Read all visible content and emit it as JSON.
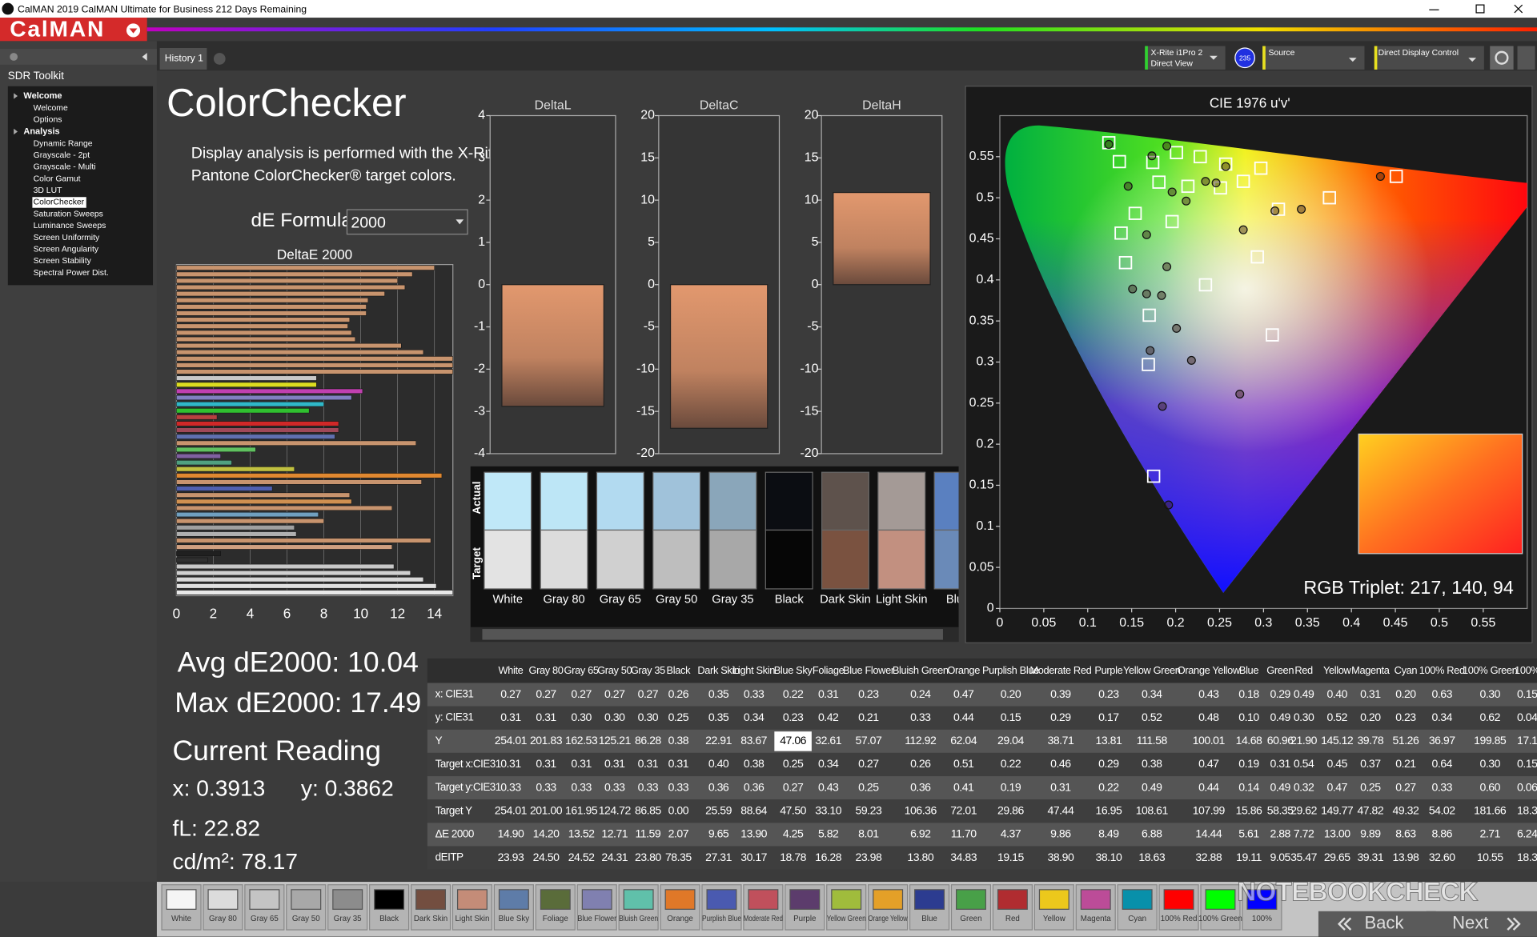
{
  "window": {
    "title": "CalMAN 2019 CalMAN Ultimate for Business 212 Days Remaining"
  },
  "app": {
    "logo": "CalMAN",
    "tab": "History 1",
    "sidebar_title": "SDR Toolkit",
    "tree": [
      {
        "label": "Welcome",
        "items": [
          "Welcome",
          "Options"
        ]
      },
      {
        "label": "Analysis",
        "items": [
          "Dynamic Range",
          "Grayscale - 2pt",
          "Grayscale - Multi",
          "Color Gamut",
          "3D LUT",
          "ColorChecker",
          "Saturation Sweeps",
          "Luminance Sweeps",
          "Screen Uniformity",
          "Screen Angularity",
          "Screen Stability",
          "Spectral Power Dist."
        ],
        "selected_index": 5
      }
    ]
  },
  "toolbar": {
    "meter": [
      "X-Rite i1Pro 2",
      "Direct View"
    ],
    "meter_badge": "235",
    "source": "Source",
    "display": "Direct Display Control"
  },
  "page": {
    "title": "ColorChecker",
    "description": [
      "Display analysis is performed with the X-Rite/",
      "Pantone ColorChecker® target colors."
    ],
    "formula_label": "dE Formula:",
    "formula": "2000"
  },
  "deltae_chart": {
    "title": "DeltaE 2000",
    "xlim": [
      0,
      15
    ],
    "xticks": [
      0,
      2,
      4,
      6,
      8,
      10,
      12,
      14
    ],
    "values": [
      14.0,
      12.8,
      12.0,
      12.4,
      11.3,
      10.4,
      10.3,
      10.3,
      9.4,
      9.3,
      9.5,
      9.7,
      12.2,
      13.4,
      15,
      15,
      15,
      7.6,
      7.6,
      10.1,
      9.5,
      8.0,
      7.2,
      2.2,
      8.8,
      8.8,
      8.6,
      13.0,
      4.3,
      2.4,
      3.0,
      6.4,
      14.4,
      13.3,
      5.2,
      9.4,
      9.5,
      11.7,
      7.7,
      8.0,
      6.4,
      6.5,
      13.8,
      11.7,
      2.4,
      1.7,
      11.8,
      12.7,
      13.4,
      14.1,
      15
    ],
    "colors": [
      "#c8946e",
      "#c8946e",
      "#c8946e",
      "#c8946e",
      "#c8946e",
      "#c8946e",
      "#c8946e",
      "#c8946e",
      "#c8946e",
      "#c8946e",
      "#c8946e",
      "#c8946e",
      "#c8946e",
      "#c8946e",
      "#c8946e",
      "#c8946e",
      "#c8946e",
      "#c8c8c8",
      "#dcdc20",
      "#c040b0",
      "#8080c0",
      "#30b8c8",
      "#30c030",
      "#b84040",
      "#d02828",
      "#a04858",
      "#6070b0",
      "#c8946e",
      "#60c060",
      "#8060a0",
      "#50a080",
      "#c0c040",
      "#e08830",
      "#c8946e",
      "#5060b0",
      "#c8946e",
      "#d09050",
      "#c8946e",
      "#70a0c0",
      "#c8946e",
      "#a0a0a0",
      "#b0b0b0",
      "#c8946e",
      "#d0a080",
      "#202020",
      "#303030",
      "#c8c8c8",
      "#d0d0d0",
      "#d8d8d8",
      "#e0e0e0",
      "#e8e8e8"
    ]
  },
  "delta_charts": [
    {
      "title": "DeltaL",
      "ylim": [
        -4,
        4
      ],
      "yticks": [
        4,
        3,
        2,
        1,
        0,
        -1,
        -2,
        -3,
        -4
      ],
      "value": -2.88
    },
    {
      "title": "DeltaC",
      "ylim": [
        -20,
        20
      ],
      "yticks": [
        20,
        15,
        10,
        5,
        0,
        -5,
        -10,
        -15,
        -20
      ],
      "value": -17.0
    },
    {
      "title": "DeltaH",
      "ylim": [
        -20,
        20
      ],
      "yticks": [
        20,
        15,
        10,
        5,
        0,
        -5,
        -10,
        -15,
        -20
      ],
      "value": 10.9
    }
  ],
  "swatches": {
    "actual_label": "Actual",
    "target_label": "Target",
    "items": [
      {
        "name": "White",
        "actual": "#c0e8f8",
        "target": "#e3e3e3"
      },
      {
        "name": "Gray 80",
        "actual": "#bde6f6",
        "target": "#dcdcdc"
      },
      {
        "name": "Gray 65",
        "actual": "#b2daf0",
        "target": "#d0d0d0"
      },
      {
        "name": "Gray 50",
        "actual": "#a0c2da",
        "target": "#bebebe"
      },
      {
        "name": "Gray 35",
        "actual": "#8aa6ba",
        "target": "#a8a8a8"
      },
      {
        "name": "Black",
        "actual": "#0b0d12",
        "target": "#060606"
      },
      {
        "name": "Dark Skin",
        "actual": "#5e524c",
        "target": "#7a5240"
      },
      {
        "name": "Light Skin",
        "actual": "#a49a96",
        "target": "#c29080"
      },
      {
        "name": "Blue",
        "actual": "#5a80c0",
        "target": "#6a8ab8"
      }
    ]
  },
  "cie": {
    "title": "CIE 1976 u'v'",
    "xlim": [
      0,
      0.6
    ],
    "ylim": [
      0,
      0.6
    ],
    "xticks": [
      0,
      0.05,
      0.1,
      0.15,
      0.2,
      0.25,
      0.3,
      0.35,
      0.4,
      0.45,
      0.5,
      0.55
    ],
    "yticks": [
      0,
      0.05,
      0.1,
      0.15,
      0.2,
      0.25,
      0.3,
      0.35,
      0.4,
      0.45,
      0.5,
      0.55
    ],
    "measured": {
      "u": [
        0.124,
        0.173,
        0.19,
        0.146,
        0.196,
        0.212,
        0.234,
        0.257,
        0.313,
        0.343,
        0.433,
        0.167,
        0.19,
        0.151,
        0.167,
        0.184,
        0.201,
        0.171,
        0.218,
        0.185,
        0.192,
        0.277,
        0.273,
        0.246
      ],
      "v": [
        0.565,
        0.551,
        0.563,
        0.514,
        0.507,
        0.496,
        0.52,
        0.538,
        0.484,
        0.486,
        0.526,
        0.455,
        0.416,
        0.389,
        0.383,
        0.381,
        0.341,
        0.314,
        0.302,
        0.246,
        0.126,
        0.461,
        0.261,
        0.518
      ]
    },
    "targets": {
      "u": [
        0.124,
        0.136,
        0.174,
        0.201,
        0.228,
        0.257,
        0.297,
        0.181,
        0.214,
        0.251,
        0.277,
        0.375,
        0.451,
        0.317,
        0.154,
        0.138,
        0.196,
        0.143,
        0.293,
        0.234,
        0.17,
        0.31,
        0.169,
        0.175
      ],
      "v": [
        0.567,
        0.544,
        0.543,
        0.555,
        0.55,
        0.541,
        0.536,
        0.519,
        0.514,
        0.512,
        0.52,
        0.5,
        0.526,
        0.486,
        0.481,
        0.457,
        0.471,
        0.421,
        0.428,
        0.394,
        0.357,
        0.333,
        0.297,
        0.161
      ]
    },
    "rgb_triplet": "RGB Triplet: 217, 140, 94"
  },
  "summary": {
    "avg": "Avg dE2000: 10.04",
    "max": "Max dE2000: 17.49",
    "current_reading": "Current Reading",
    "x": "x: 0.3913",
    "y": "y: 0.3862",
    "fl": "fL: 22.82",
    "cdm2": "cd/m²: 78.17"
  },
  "table": {
    "columns": [
      "White",
      "Gray 80",
      "Gray 65",
      "Gray 50",
      "Gray 35",
      "Black",
      "Dark Skin",
      "Light Skin",
      "Blue Sky",
      "Foliage",
      "Blue Flower",
      "Bluish Green",
      "Orange",
      "Purplish Blue",
      "Moderate Red",
      "Purple",
      "Yellow Green",
      "Orange Yellow",
      "Blue",
      "Green",
      "Red",
      "Yellow",
      "Magenta",
      "Cyan",
      "100% Red",
      "100% Green",
      "100%"
    ],
    "rows": [
      {
        "label": "x: CIE31",
        "cells": [
          "0.27",
          "0.27",
          "0.27",
          "0.27",
          "0.27",
          "0.26",
          "0.35",
          "0.33",
          "0.22",
          "0.31",
          "0.23",
          "0.24",
          "0.47",
          "0.20",
          "0.39",
          "0.23",
          "0.34",
          "0.43",
          "0.18",
          "0.29",
          "0.49",
          "0.40",
          "0.31",
          "0.20",
          "0.63",
          "0.30",
          "0.15"
        ]
      },
      {
        "label": "y: CIE31",
        "cells": [
          "0.31",
          "0.31",
          "0.30",
          "0.30",
          "0.30",
          "0.25",
          "0.35",
          "0.34",
          "0.23",
          "0.42",
          "0.21",
          "0.33",
          "0.44",
          "0.15",
          "0.29",
          "0.17",
          "0.52",
          "0.48",
          "0.10",
          "0.49",
          "0.30",
          "0.52",
          "0.20",
          "0.23",
          "0.34",
          "0.62",
          "0.04"
        ]
      },
      {
        "label": "Y",
        "cells": [
          "254.01",
          "201.83",
          "162.53",
          "125.21",
          "86.28",
          "0.38",
          "22.91",
          "83.67",
          "47.06",
          "32.61",
          "57.07",
          "112.92",
          "62.04",
          "29.04",
          "38.71",
          "13.81",
          "111.58",
          "100.01",
          "14.68",
          "60.96",
          "21.90",
          "145.12",
          "39.78",
          "51.26",
          "36.97",
          "199.85",
          "17.1"
        ]
      },
      {
        "label": "Target x:CIE31",
        "cells": [
          "0.31",
          "0.31",
          "0.31",
          "0.31",
          "0.31",
          "0.31",
          "0.40",
          "0.38",
          "0.25",
          "0.34",
          "0.27",
          "0.26",
          "0.51",
          "0.22",
          "0.46",
          "0.29",
          "0.38",
          "0.47",
          "0.19",
          "0.31",
          "0.54",
          "0.45",
          "0.37",
          "0.21",
          "0.64",
          "0.30",
          "0.15"
        ]
      },
      {
        "label": "Target y:CIE31",
        "cells": [
          "0.33",
          "0.33",
          "0.33",
          "0.33",
          "0.33",
          "0.33",
          "0.36",
          "0.36",
          "0.27",
          "0.43",
          "0.25",
          "0.36",
          "0.41",
          "0.19",
          "0.31",
          "0.22",
          "0.49",
          "0.44",
          "0.14",
          "0.49",
          "0.32",
          "0.47",
          "0.25",
          "0.27",
          "0.33",
          "0.60",
          "0.06"
        ]
      },
      {
        "label": "Target Y",
        "cells": [
          "254.01",
          "201.00",
          "161.95",
          "124.72",
          "86.85",
          "0.00",
          "25.59",
          "88.64",
          "47.50",
          "33.10",
          "59.23",
          "106.36",
          "72.01",
          "29.86",
          "47.44",
          "16.95",
          "108.61",
          "107.99",
          "15.86",
          "58.35",
          "29.62",
          "149.77",
          "47.82",
          "49.32",
          "54.02",
          "181.66",
          "18.3"
        ]
      },
      {
        "label": "ΔE 2000",
        "cells": [
          "14.90",
          "14.20",
          "13.52",
          "12.71",
          "11.59",
          "2.07",
          "9.65",
          "13.90",
          "4.25",
          "5.82",
          "8.01",
          "6.92",
          "11.70",
          "4.37",
          "9.86",
          "8.49",
          "6.88",
          "14.44",
          "5.61",
          "2.88",
          "7.72",
          "13.00",
          "9.89",
          "8.63",
          "8.86",
          "2.71",
          "6.24"
        ]
      },
      {
        "label": "dEITP",
        "cells": [
          "23.93",
          "24.50",
          "24.52",
          "24.31",
          "23.80",
          "78.35",
          "27.31",
          "30.17",
          "18.78",
          "16.28",
          "23.98",
          "13.80",
          "34.83",
          "19.15",
          "38.90",
          "38.10",
          "18.63",
          "32.88",
          "19.11",
          "9.05",
          "35.47",
          "29.65",
          "39.31",
          "13.98",
          "32.60",
          "10.55",
          "18.3"
        ]
      }
    ],
    "selected_cell": [
      2,
      8
    ]
  },
  "palette": [
    {
      "label": "White",
      "color": "#f5f5f5"
    },
    {
      "label": "Gray 80",
      "color": "#dcdcdc"
    },
    {
      "label": "Gray 65",
      "color": "#c4c4c4"
    },
    {
      "label": "Gray 50",
      "color": "#a8a8a8"
    },
    {
      "label": "Gray 35",
      "color": "#8c8c8c"
    },
    {
      "label": "Black",
      "color": "#000000"
    },
    {
      "label": "Dark Skin",
      "color": "#734e40"
    },
    {
      "label": "Light Skin",
      "color": "#c48c78"
    },
    {
      "label": "Blue Sky",
      "color": "#5e7ca8"
    },
    {
      "label": "Foliage",
      "color": "#5a6c3a"
    },
    {
      "label": "Blue Flower",
      "color": "#8080b0"
    },
    {
      "label": "Bluish Green",
      "color": "#60c0aa"
    },
    {
      "label": "Orange",
      "color": "#e07828"
    },
    {
      "label": "Purplish Blue",
      "color": "#4a5ab0"
    },
    {
      "label": "Moderate Red",
      "color": "#c0505c"
    },
    {
      "label": "Purple",
      "color": "#5c3c6c"
    },
    {
      "label": "Yellow Green",
      "color": "#a0bc3c"
    },
    {
      "label": "Orange Yellow",
      "color": "#e4a028"
    },
    {
      "label": "Blue",
      "color": "#2c3c90"
    },
    {
      "label": "Green",
      "color": "#48a048"
    },
    {
      "label": "Red",
      "color": "#b02c30"
    },
    {
      "label": "Yellow",
      "color": "#ecc81c"
    },
    {
      "label": "Magenta",
      "color": "#bc4c98"
    },
    {
      "label": "Cyan",
      "color": "#0890aa"
    },
    {
      "label": "100% Red",
      "color": "#ff0000"
    },
    {
      "label": "100% Green",
      "color": "#00ff00"
    },
    {
      "label": "100%",
      "color": "#0000ff"
    }
  ],
  "nav": {
    "back": "Back",
    "next": "Next"
  },
  "watermark": "NOTEBOOKCHECK"
}
